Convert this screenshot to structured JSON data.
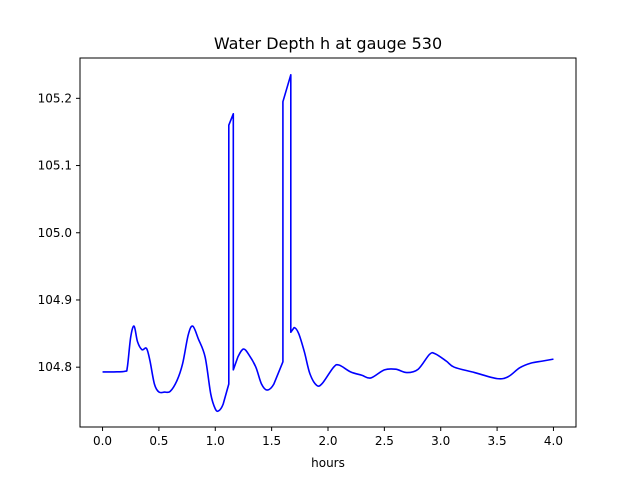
{
  "chart_data": {
    "type": "line",
    "title": "Water Depth h at gauge 530",
    "xlabel": "hours",
    "ylabel": "",
    "xlim": [
      -0.2,
      4.2
    ],
    "ylim": [
      104.711,
      105.26
    ],
    "xticks": [
      0.0,
      0.5,
      1.0,
      1.5,
      2.0,
      2.5,
      3.0,
      3.5,
      4.0
    ],
    "xtick_labels": [
      "0.0",
      "0.5",
      "1.0",
      "1.5",
      "2.0",
      "2.5",
      "3.0",
      "3.5",
      "4.0"
    ],
    "yticks": [
      104.8,
      104.9,
      105.0,
      105.1,
      105.2
    ],
    "ytick_labels": [
      "104.8",
      "104.9",
      "105.0",
      "105.1",
      "105.2"
    ],
    "grid": false,
    "series": [
      {
        "color": "#0000ff",
        "points": [
          [
            0.0,
            104.793
          ],
          [
            0.1,
            104.793
          ],
          [
            0.2,
            104.794
          ],
          [
            0.22,
            104.8
          ],
          [
            0.25,
            104.845
          ],
          [
            0.28,
            104.861
          ],
          [
            0.31,
            104.838
          ],
          [
            0.35,
            104.826
          ],
          [
            0.39,
            104.828
          ],
          [
            0.42,
            104.81
          ],
          [
            0.46,
            104.775
          ],
          [
            0.5,
            104.763
          ],
          [
            0.55,
            104.763
          ],
          [
            0.6,
            104.764
          ],
          [
            0.66,
            104.78
          ],
          [
            0.71,
            104.805
          ],
          [
            0.76,
            104.848
          ],
          [
            0.8,
            104.861
          ],
          [
            0.85,
            104.842
          ],
          [
            0.91,
            104.815
          ],
          [
            0.96,
            104.76
          ],
          [
            1.0,
            104.738
          ],
          [
            1.03,
            104.735
          ],
          [
            1.07,
            104.745
          ],
          [
            1.12,
            104.775
          ],
          [
            1.12,
            105.16
          ],
          [
            1.16,
            105.177
          ],
          [
            1.16,
            104.796
          ],
          [
            1.2,
            104.815
          ],
          [
            1.25,
            104.827
          ],
          [
            1.3,
            104.818
          ],
          [
            1.36,
            104.8
          ],
          [
            1.41,
            104.775
          ],
          [
            1.46,
            104.766
          ],
          [
            1.52,
            104.775
          ],
          [
            1.6,
            104.808
          ],
          [
            1.6,
            105.195
          ],
          [
            1.67,
            105.235
          ],
          [
            1.67,
            104.852
          ],
          [
            1.7,
            104.859
          ],
          [
            1.74,
            104.85
          ],
          [
            1.79,
            104.823
          ],
          [
            1.84,
            104.79
          ],
          [
            1.9,
            104.773
          ],
          [
            1.95,
            104.776
          ],
          [
            2.05,
            104.8
          ],
          [
            2.1,
            104.803
          ],
          [
            2.2,
            104.793
          ],
          [
            2.3,
            104.788
          ],
          [
            2.38,
            104.784
          ],
          [
            2.5,
            104.796
          ],
          [
            2.6,
            104.797
          ],
          [
            2.7,
            104.792
          ],
          [
            2.8,
            104.797
          ],
          [
            2.9,
            104.819
          ],
          [
            2.95,
            104.82
          ],
          [
            3.05,
            104.809
          ],
          [
            3.12,
            104.8
          ],
          [
            3.3,
            104.792
          ],
          [
            3.5,
            104.783
          ],
          [
            3.6,
            104.786
          ],
          [
            3.7,
            104.799
          ],
          [
            3.8,
            104.806
          ],
          [
            3.9,
            104.809
          ],
          [
            4.0,
            104.812
          ]
        ]
      }
    ]
  }
}
